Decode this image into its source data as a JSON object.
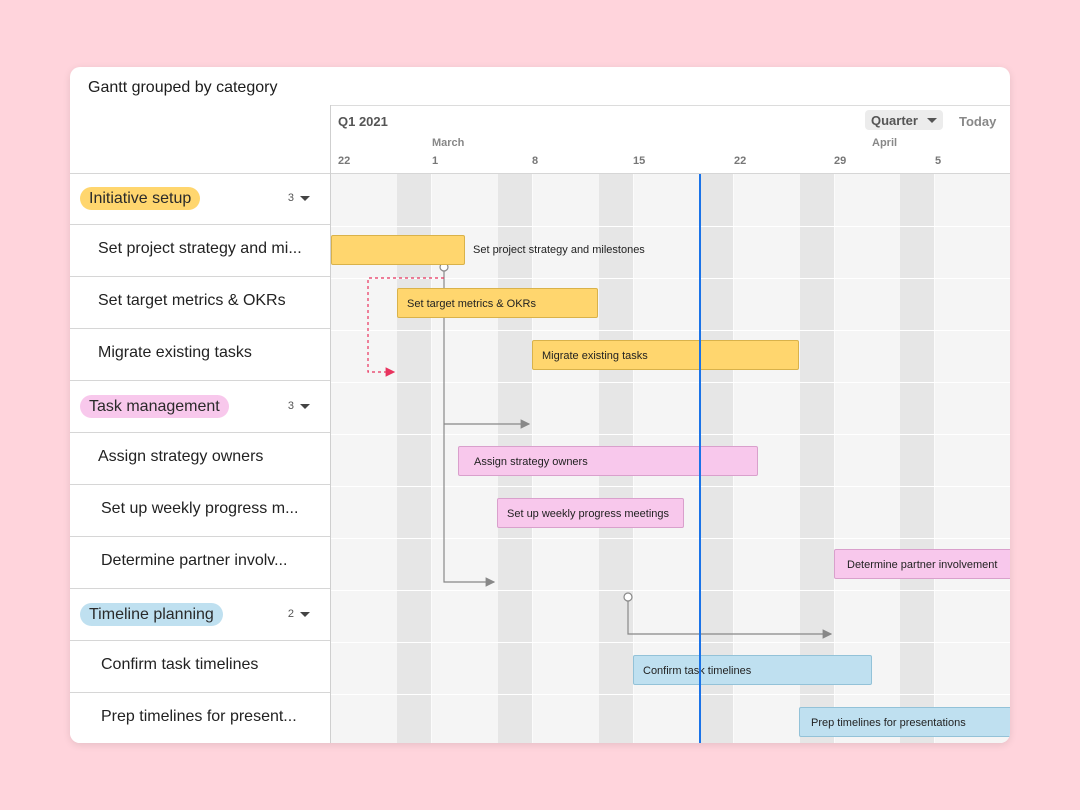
{
  "card": {
    "title": "Gantt grouped by category"
  },
  "header": {
    "quarter": "Q1 2021",
    "months": [
      "March",
      "April"
    ],
    "ticks": [
      "22",
      "1",
      "8",
      "15",
      "22",
      "29",
      "5"
    ],
    "zoom_label": "Quarter",
    "today_label": "Today"
  },
  "colors": {
    "initiative": "#ffd66e",
    "task_management": "#f8c8ec",
    "timeline_planning": "#bfe0f0",
    "today_line": "#1a73e8",
    "dependency_conflict": "#e8335e"
  },
  "groups": [
    {
      "name": "Initiative setup",
      "count": "3"
    },
    {
      "name": "Task management",
      "count": "3"
    },
    {
      "name": "Timeline planning",
      "count": "2"
    }
  ],
  "tasks": [
    {
      "label": "Set project strategy and mi...",
      "bar": "Set project strategy and milestones"
    },
    {
      "label": "Set target metrics & OKRs",
      "bar": "Set target metrics & OKRs"
    },
    {
      "label": "Migrate existing tasks",
      "bar": "Migrate existing tasks"
    },
    {
      "label": "Assign strategy owners",
      "bar": "Assign strategy owners"
    },
    {
      "label": "Set up weekly progress m...",
      "bar": "Set up weekly progress meetings"
    },
    {
      "label": "Determine partner involv...",
      "bar": "Determine partner involvement"
    },
    {
      "label": "Confirm task timelines",
      "bar": "Confirm task timelines"
    },
    {
      "label": "Prep timelines for present...",
      "bar": "Prep timelines for presentations"
    }
  ]
}
